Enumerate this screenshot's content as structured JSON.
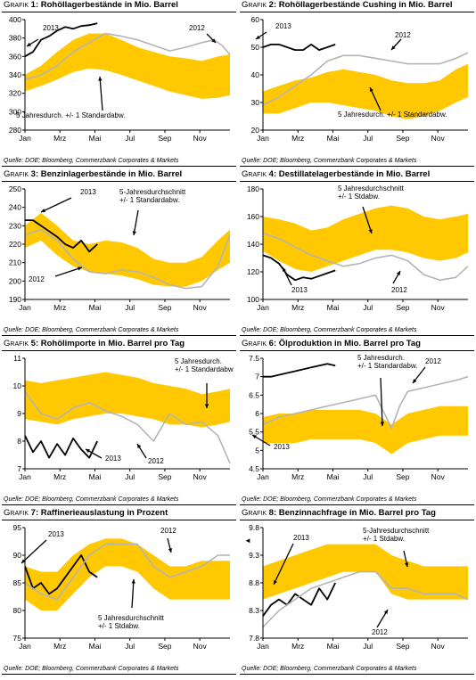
{
  "colors": {
    "band": "#ffc800",
    "current": "#000000",
    "previous": "#b4b4b4",
    "axis": "#000000"
  },
  "months": [
    "Jan",
    "Mrz",
    "Mai",
    "Jul",
    "Sep",
    "Nov"
  ],
  "source": "Quelle: DOE; Bloomberg, Commerzbank Corporates & Markets",
  "marker_glyph": "◄",
  "chart_data": [
    {
      "type": "area",
      "prefix": "Grafik",
      "number": "1:",
      "title": "Rohöllagerbestände in Mio. Barrel",
      "source": "Quelle: DOE; Bloomberg, Commerzbank Corporates & Markets",
      "ylim": [
        280,
        400
      ],
      "yticks": [
        280,
        300,
        320,
        340,
        360,
        380,
        400
      ],
      "band_x": [
        1,
        5,
        9,
        13,
        17,
        21,
        25,
        29,
        33,
        37,
        41,
        45,
        49,
        52
      ],
      "band_lower": [
        322,
        328,
        335,
        343,
        347,
        345,
        340,
        334,
        328,
        322,
        318,
        314,
        315,
        318
      ],
      "band_upper": [
        340,
        350,
        365,
        378,
        385,
        385,
        378,
        370,
        365,
        360,
        358,
        355,
        360,
        362
      ],
      "series": [
        {
          "name": "2013",
          "x": [
            1,
            3,
            5,
            7,
            9,
            11,
            13,
            15,
            17,
            19
          ],
          "values": [
            360,
            365,
            378,
            382,
            388,
            392,
            390,
            393,
            394,
            396
          ]
        },
        {
          "name": "2012",
          "x": [
            1,
            5,
            9,
            13,
            17,
            21,
            25,
            29,
            33,
            37,
            41,
            45,
            48,
            50,
            52
          ],
          "values": [
            335,
            340,
            350,
            365,
            375,
            385,
            382,
            378,
            372,
            366,
            370,
            375,
            378,
            372,
            362
          ]
        }
      ],
      "annotations": [
        "2013",
        "2012",
        "5 Jahresdurch. +/- 1 Standardabw."
      ]
    },
    {
      "type": "area",
      "prefix": "Grafik",
      "number": "2:",
      "title": "Rohöllagerbestände Cushing in Mio. Barrel",
      "source": "Quelle: DOE; Bloomberg, Commerzbank Corporates & Markets",
      "ylim": [
        20,
        60
      ],
      "yticks": [
        20,
        30,
        40,
        50,
        60
      ],
      "band_x": [
        1,
        5,
        9,
        13,
        17,
        21,
        25,
        29,
        33,
        37,
        41,
        45,
        49,
        52
      ],
      "band_lower": [
        26,
        26,
        28,
        30,
        30,
        29,
        28,
        27,
        25,
        24,
        25,
        27,
        30,
        32
      ],
      "band_upper": [
        34,
        36,
        38,
        39,
        41,
        42,
        41,
        40,
        38,
        37,
        37,
        38,
        42,
        44
      ],
      "series": [
        {
          "name": "2013",
          "x": [
            1,
            3,
            5,
            7,
            9,
            11,
            13,
            15,
            17,
            19
          ],
          "values": [
            50,
            51,
            51,
            50,
            49,
            49,
            51,
            49,
            50,
            51
          ]
        },
        {
          "name": "2012",
          "x": [
            1,
            5,
            9,
            13,
            17,
            21,
            25,
            29,
            33,
            37,
            41,
            45,
            49,
            52
          ],
          "values": [
            29,
            32,
            36,
            40,
            45,
            47,
            47,
            46,
            45,
            44,
            44,
            44,
            46,
            48
          ]
        }
      ],
      "annotations": [
        "2013",
        "2012",
        "5 Jahresdurch. +/- 1 Standardabw."
      ]
    },
    {
      "type": "area",
      "prefix": "Grafik",
      "number": "3:",
      "title": "Benzinlagerbestände in Mio. Barrel",
      "source": "Quelle: DOE; Bloomberg, Commerzbank Corporates & Markets",
      "ylim": [
        190,
        250
      ],
      "yticks": [
        190,
        200,
        210,
        220,
        230,
        240,
        250
      ],
      "band_x": [
        1,
        5,
        9,
        13,
        17,
        21,
        25,
        29,
        33,
        37,
        41,
        45,
        49,
        52
      ],
      "band_lower": [
        218,
        222,
        214,
        208,
        205,
        204,
        203,
        201,
        198,
        197,
        197,
        200,
        206,
        210
      ],
      "band_upper": [
        230,
        237,
        230,
        222,
        220,
        222,
        221,
        218,
        212,
        210,
        210,
        213,
        222,
        228
      ],
      "series": [
        {
          "name": "2013",
          "x": [
            1,
            3,
            5,
            7,
            9,
            11,
            13,
            15,
            17,
            19
          ],
          "values": [
            233,
            233,
            230,
            227,
            224,
            220,
            218,
            222,
            216,
            220
          ]
        },
        {
          "name": "2012",
          "x": [
            1,
            5,
            9,
            13,
            17,
            21,
            25,
            29,
            33,
            37,
            41,
            45,
            49,
            52
          ],
          "values": [
            225,
            228,
            222,
            212,
            205,
            204,
            206,
            205,
            202,
            198,
            196,
            197,
            208,
            225
          ]
        }
      ],
      "annotations": [
        "2013",
        "2012",
        "5-Jahresdurchschnitt +/- 1 Standardabw."
      ]
    },
    {
      "type": "area",
      "prefix": "Grafik",
      "number": "4:",
      "title": "Destillatelagerbestände in Mio. Barrel",
      "source": "Quelle: DOE; Bloomberg, Commerzbank Corporates & Markets",
      "ylim": [
        100,
        180
      ],
      "yticks": [
        100,
        120,
        140,
        160,
        180
      ],
      "band_x": [
        1,
        5,
        9,
        13,
        17,
        21,
        25,
        29,
        33,
        37,
        41,
        45,
        49,
        52
      ],
      "band_lower": [
        135,
        128,
        122,
        120,
        124,
        128,
        132,
        136,
        136,
        134,
        130,
        128,
        130,
        134
      ],
      "band_upper": [
        160,
        158,
        155,
        150,
        152,
        158,
        162,
        166,
        168,
        166,
        160,
        158,
        160,
        162
      ],
      "series": [
        {
          "name": "2013",
          "x": [
            1,
            3,
            5,
            7,
            9,
            11,
            13,
            15,
            17,
            19
          ],
          "values": [
            132,
            130,
            126,
            118,
            114,
            116,
            115,
            117,
            119,
            121
          ]
        },
        {
          "name": "2012",
          "x": [
            1,
            5,
            9,
            13,
            17,
            21,
            25,
            29,
            33,
            37,
            41,
            45,
            49,
            52
          ],
          "values": [
            148,
            144,
            138,
            132,
            128,
            124,
            126,
            130,
            132,
            128,
            118,
            114,
            116,
            124
          ]
        }
      ],
      "annotations": [
        "2013",
        "2012",
        "5 Jahresdurchschnitt +/- 1 Stdabw."
      ]
    },
    {
      "type": "area",
      "prefix": "Grafik",
      "number": "5:",
      "title": "Rohölimporte in Mio. Barrel pro Tag",
      "source": "Quelle: DOE; Bloomberg, Commerzbank Corporates & Markets",
      "ylim": [
        7,
        11
      ],
      "yticks": [
        7,
        8,
        9,
        10,
        11
      ],
      "band_x": [
        1,
        5,
        9,
        13,
        17,
        21,
        25,
        29,
        33,
        37,
        41,
        45,
        49,
        52
      ],
      "band_lower": [
        8.8,
        8.7,
        8.6,
        8.8,
        8.9,
        9.0,
        9.0,
        8.9,
        8.8,
        8.6,
        8.6,
        8.5,
        8.6,
        8.7
      ],
      "band_upper": [
        10.2,
        10.1,
        10.2,
        10.3,
        10.4,
        10.5,
        10.4,
        10.3,
        10.1,
        10.0,
        9.9,
        9.7,
        9.8,
        9.9
      ],
      "series": [
        {
          "name": "2013",
          "x": [
            1,
            3,
            5,
            7,
            9,
            11,
            13,
            15,
            17,
            19
          ],
          "values": [
            8.2,
            7.6,
            8.0,
            7.4,
            7.9,
            7.5,
            8.1,
            7.7,
            7.4,
            8.0
          ]
        },
        {
          "name": "2012",
          "x": [
            1,
            5,
            9,
            13,
            17,
            21,
            25,
            29,
            33,
            37,
            41,
            45,
            49,
            52
          ],
          "values": [
            9.8,
            9.0,
            8.8,
            9.2,
            9.4,
            9.1,
            8.9,
            8.6,
            8.0,
            9.0,
            8.6,
            8.7,
            8.2,
            7.2
          ]
        }
      ],
      "annotations": [
        "2013",
        "2012",
        "5 Jahresdurch. +/- 1 Standardabw."
      ]
    },
    {
      "type": "area",
      "prefix": "Grafik",
      "number": "6:",
      "title": "Ölproduktion in Mio. Barrel pro Tag",
      "source": "Quelle: DOE; Bloomberg, Commerzbank Corporates & Markets",
      "ylim": [
        4.5,
        7.5
      ],
      "yticks": [
        4.5,
        5.0,
        5.5,
        6.0,
        6.5,
        7.0,
        7.5
      ],
      "band_x": [
        1,
        5,
        9,
        13,
        17,
        21,
        25,
        29,
        33,
        37,
        41,
        45,
        49,
        52
      ],
      "band_lower": [
        5.2,
        5.2,
        5.2,
        5.3,
        5.3,
        5.3,
        5.3,
        5.2,
        4.9,
        5.2,
        5.3,
        5.4,
        5.4,
        5.4
      ],
      "band_upper": [
        5.9,
        6.0,
        6.0,
        6.1,
        6.1,
        6.1,
        6.1,
        6.0,
        5.7,
        6.0,
        6.1,
        6.2,
        6.2,
        6.2
      ],
      "series": [
        {
          "name": "2013",
          "x": [
            1,
            3,
            5,
            7,
            9,
            11,
            13,
            15,
            17,
            19
          ],
          "values": [
            7.0,
            7.0,
            7.05,
            7.1,
            7.15,
            7.2,
            7.25,
            7.3,
            7.35,
            7.3
          ]
        },
        {
          "name": "2012",
          "x": [
            1,
            5,
            9,
            13,
            17,
            21,
            25,
            29,
            33,
            35,
            37,
            41,
            45,
            49,
            52
          ],
          "values": [
            5.7,
            5.9,
            6.0,
            6.1,
            6.2,
            6.3,
            6.4,
            6.5,
            5.6,
            6.2,
            6.6,
            6.7,
            6.8,
            6.9,
            7.0
          ]
        }
      ],
      "annotations": [
        "2013",
        "2012",
        "5 Jahresdurch. +/- 1 Standardabw."
      ]
    },
    {
      "type": "area",
      "prefix": "Grafik",
      "number": "7:",
      "title": "Raffinerieauslastung in Prozent",
      "source": "Quelle: DOE; Bloomberg, Commerzbank Corporates & Markets",
      "ylim": [
        75,
        95
      ],
      "yticks": [
        75,
        80,
        85,
        90,
        95
      ],
      "band_x": [
        1,
        5,
        9,
        13,
        17,
        21,
        25,
        29,
        33,
        37,
        41,
        45,
        49,
        52
      ],
      "band_lower": [
        82,
        80,
        80,
        83,
        86,
        88,
        88,
        87,
        84,
        82,
        82,
        82,
        82,
        82
      ],
      "band_upper": [
        88,
        87,
        87,
        90,
        92,
        93,
        93,
        92,
        90,
        88,
        88,
        89,
        89,
        89
      ],
      "series": [
        {
          "name": "2013",
          "x": [
            1,
            3,
            5,
            7,
            9,
            11,
            13,
            15,
            17,
            19
          ],
          "values": [
            88,
            84,
            85,
            83,
            84,
            86,
            88,
            90,
            87,
            86
          ]
        },
        {
          "name": "2012",
          "x": [
            1,
            5,
            9,
            13,
            17,
            21,
            25,
            29,
            33,
            37,
            41,
            45,
            49,
            52
          ],
          "values": [
            85,
            83,
            82,
            86,
            90,
            92,
            92,
            92,
            88,
            86,
            87,
            88,
            90,
            90
          ]
        }
      ],
      "annotations": [
        "2013",
        "2012",
        "5 Jahresdurchschnitt +/- 1 Stdabw."
      ]
    },
    {
      "type": "area",
      "prefix": "Grafik",
      "number": "8:",
      "title": "Benzinnachfrage in Mio. Barrel pro Tag",
      "source": "Quelle: DOE; Bloomberg, Commerzbank Corporates & Markets",
      "ylim": [
        7.8,
        9.8
      ],
      "yticks": [
        7.8,
        8.3,
        8.8,
        9.3,
        9.8
      ],
      "band_x": [
        1,
        5,
        9,
        13,
        17,
        21,
        25,
        29,
        33,
        37,
        41,
        45,
        49,
        52
      ],
      "band_lower": [
        8.5,
        8.6,
        8.7,
        8.8,
        8.9,
        9.0,
        9.0,
        9.0,
        8.6,
        8.5,
        8.5,
        8.5,
        8.5,
        8.5
      ],
      "band_upper": [
        9.1,
        9.2,
        9.3,
        9.4,
        9.5,
        9.5,
        9.5,
        9.5,
        9.3,
        9.2,
        9.1,
        9.1,
        9.1,
        9.1
      ],
      "series": [
        {
          "name": "2013",
          "x": [
            1,
            3,
            5,
            7,
            9,
            11,
            13,
            15,
            17,
            19
          ],
          "values": [
            8.2,
            8.4,
            8.5,
            8.4,
            8.6,
            8.5,
            8.4,
            8.7,
            8.5,
            8.8
          ]
        },
        {
          "name": "2012",
          "x": [
            1,
            5,
            9,
            13,
            17,
            21,
            25,
            29,
            33,
            37,
            41,
            45,
            49,
            52
          ],
          "values": [
            8.0,
            8.3,
            8.5,
            8.7,
            8.8,
            8.9,
            9.0,
            9.0,
            8.7,
            8.7,
            8.6,
            8.6,
            8.6,
            8.5
          ]
        }
      ],
      "annotations": [
        "2013",
        "2012",
        "5-Jahresdurchschnitt +/- 1 Stdabw."
      ]
    }
  ]
}
